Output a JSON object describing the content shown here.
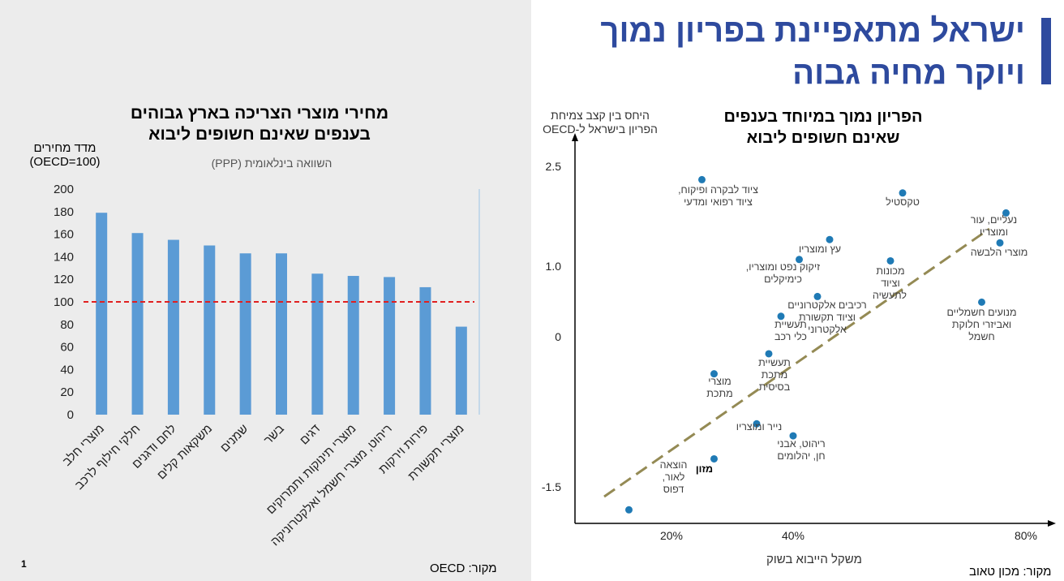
{
  "slide": {
    "title_line1": "ישראל מתאפיינת בפריון נמוך",
    "title_line2": "ויוקר מחיה גבוה",
    "page_number": "1"
  },
  "left_chart": {
    "title_line1": "מחירי מוצרי הצריכה בארץ גבוהים",
    "title_line2": "בענפים שאינם חשופים ליבוא",
    "subtitle": "השוואה בינלאומית (PPP)",
    "ylabel_line1": "מדד מחירים",
    "ylabel_line2": "(OECD=100)",
    "source": "מקור: OECD"
  },
  "right_chart": {
    "title_line1": "הפריון נמוך במיוחד בענפים",
    "title_line2": "שאינם חשופים ליבוא",
    "ylabel_line1": "היחס בין קצב צמיחת",
    "ylabel_line2": "הפריון בישראל ל-OECD",
    "xlabel": "משקל הייבוא בשוק",
    "source": "מקור: מכון טאוב"
  },
  "chart_data": [
    {
      "type": "bar",
      "title": "מחירי מוצרי הצריכה בארץ גבוהים בענפים שאינם חשופים ליבוא",
      "subtitle": "השוואה בינלאומית (PPP)",
      "ylabel": "מדד מחירים (OECD=100)",
      "ylim": [
        0,
        200
      ],
      "yticks": [
        0,
        20,
        40,
        60,
        80,
        100,
        120,
        140,
        160,
        180,
        200
      ],
      "reference_line": 100,
      "reference_color": "#e02020",
      "bar_color": "#5b9bd5",
      "categories": [
        "מוצרי חלב",
        "חלקי חילוף לרכב",
        "לחם ודגנים",
        "משקאות קלים",
        "שמנים",
        "בשר",
        "דגים",
        "מוצרי תינוקות ותמרוקים",
        "ריהוט, מוצרי חשמל ואלקטרוניקה",
        "פירות וירקות",
        "מוצרי תקשורת"
      ],
      "values": [
        179,
        161,
        155,
        150,
        143,
        143,
        125,
        123,
        122,
        113,
        78
      ],
      "grid": false
    },
    {
      "type": "scatter",
      "title": "הפריון נמוך במיוחד בענפים שאינם חשופים ליבוא",
      "xlabel": "משקל הייבוא בשוק",
      "ylabel": "היחס בין קצב צמיחת הפריון בישראל ל-OECD",
      "x_ticks": [
        "20%",
        "40%",
        "80%"
      ],
      "y_ticks": [
        "2.5",
        "1.0",
        "0",
        "-1.5"
      ],
      "point_color": "#1f7ab5",
      "trend_color": "#948a54",
      "points": [
        {
          "label": "ציוד לבקרה ופיקוח, ציוד רפואי ומדעי",
          "x": 0.25,
          "y": 2.3
        },
        {
          "label": "טקסטיל",
          "x": 0.58,
          "y": 2.1
        },
        {
          "label": "נעליים, עור ומוצריו",
          "x": 0.75,
          "y": 1.8
        },
        {
          "label": "מוצרי הלבשה",
          "x": 0.74,
          "y": 1.35
        },
        {
          "label": "עץ ומוצריו",
          "x": 0.46,
          "y": 1.4
        },
        {
          "label": "זיקוק נפט ומוצריו, כימיקלים",
          "x": 0.41,
          "y": 1.1
        },
        {
          "label": "מכונות וציוד לתעשיה",
          "x": 0.56,
          "y": 1.08
        },
        {
          "label": "רכיבים אלקטרוניים וציוד תקשורת אלקטרוני",
          "x": 0.44,
          "y": 0.57
        },
        {
          "label": "מנועים חשמליים ואביזרי חלוקת חשמל",
          "x": 0.71,
          "y": 0.49
        },
        {
          "label": "תעשיית כלי רכב",
          "x": 0.38,
          "y": 0.29
        },
        {
          "label": "תעשיית מתכת בסיסית",
          "x": 0.36,
          "y": -0.17
        },
        {
          "label": "מוצרי מתכת",
          "x": 0.27,
          "y": -0.37
        },
        {
          "label": "נייר ומוצריו",
          "x": 0.34,
          "y": -0.87
        },
        {
          "label": "ריהוט, אבני חן, יהלומים",
          "x": 0.4,
          "y": -0.99
        },
        {
          "label": "מזון",
          "x": 0.27,
          "y": -1.22
        },
        {
          "label": "הוצאה לאור, דפוס",
          "x": 0.13,
          "y": -1.73
        }
      ]
    }
  ]
}
